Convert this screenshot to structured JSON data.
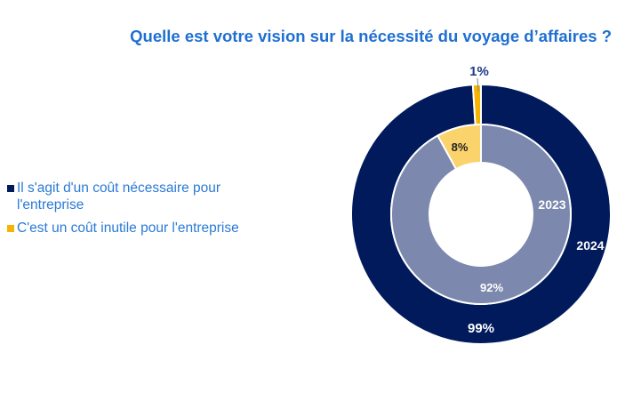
{
  "chart_data": {
    "type": "pie",
    "title": "Quelle est votre vision sur la nécessité du voyage d’affaires ?",
    "legend_position": "left",
    "categories": [
      "Il s'agit d'un coût nécessaire pour l'entreprise",
      "C'est un coût inutile pour l'entreprise"
    ],
    "series": [
      {
        "name": "2024",
        "ring": "outer",
        "values": [
          99,
          1
        ],
        "labels": [
          "99%",
          "1%"
        ],
        "colors": [
          "#001a5c",
          "#f5b400"
        ]
      },
      {
        "name": "2023",
        "ring": "inner",
        "values": [
          92,
          8
        ],
        "labels": [
          "92%",
          "8%"
        ],
        "colors": [
          "#7c88ae",
          "#fbd36c"
        ]
      }
    ]
  }
}
